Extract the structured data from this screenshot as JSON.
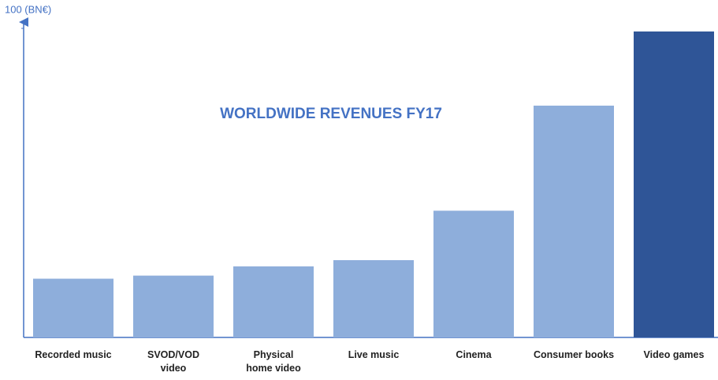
{
  "chart_data": {
    "type": "bar",
    "title": "WORLDWIDE REVENUES FY17",
    "categories": [
      "Recorded music",
      "SVOD/VOD\nvideo",
      "Physical\nhome video",
      "Live music",
      "Cinema",
      "Consumer books",
      "Video games"
    ],
    "values": [
      19,
      20,
      23,
      25,
      41,
      75,
      99
    ],
    "colors": [
      "#8eaedb",
      "#8eaedb",
      "#8eaedb",
      "#8eaedb",
      "#8eaedb",
      "#8eaedb",
      "#2f5597"
    ],
    "ylim": [
      0,
      100
    ],
    "yticks": [
      {
        "value": 100,
        "label": "100 (BN€)"
      }
    ],
    "grid": false
  }
}
